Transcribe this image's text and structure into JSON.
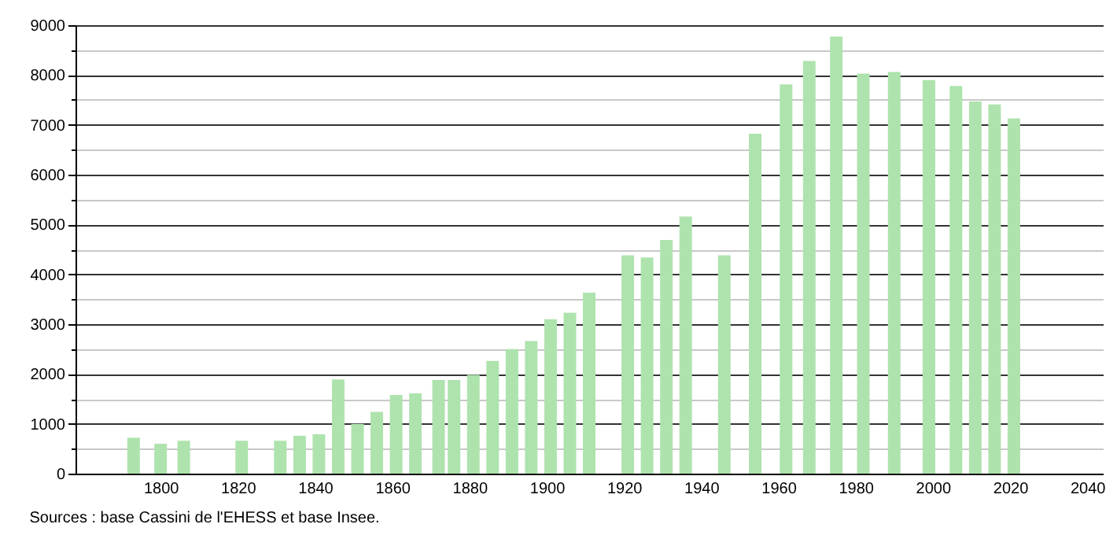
{
  "chart_data": {
    "type": "bar",
    "annotations": [
      "Sources : base Cassini de l'EHESS et base Insee."
    ],
    "x": [
      1793,
      1800,
      1806,
      1821,
      1831,
      1836,
      1841,
      1846,
      1851,
      1856,
      1861,
      1866,
      1872,
      1876,
      1881,
      1886,
      1891,
      1896,
      1901,
      1906,
      1911,
      1921,
      1926,
      1931,
      1936,
      1946,
      1954,
      1962,
      1968,
      1975,
      1982,
      1990,
      1999,
      2006,
      2011,
      2016,
      2021
    ],
    "values": [
      720,
      600,
      660,
      660,
      660,
      760,
      790,
      1890,
      1000,
      1240,
      1580,
      1610,
      1880,
      1880,
      1980,
      2260,
      2500,
      2660,
      3100,
      3230,
      3630,
      4380,
      4340,
      4690,
      5160,
      4380,
      6820,
      7810,
      8280,
      8770,
      8030,
      8060,
      7900,
      7780,
      7470,
      7410,
      7130
    ],
    "color": "#aee3ae",
    "xlim": [
      1780,
      2042
    ],
    "xticks": [
      1800,
      1820,
      1840,
      1860,
      1880,
      1900,
      1920,
      1940,
      1960,
      1980,
      2000,
      2020,
      2040
    ],
    "ylim": [
      0,
      9000
    ],
    "yticks": [
      0,
      {
        "value": 500,
        "label": null
      },
      1000,
      {
        "value": 1500,
        "label": null
      },
      2000,
      {
        "value": 2500,
        "label": null
      },
      3000,
      {
        "value": 3500,
        "label": null
      },
      4000,
      {
        "value": 4500,
        "label": null
      },
      5000,
      {
        "value": 5500,
        "label": null
      },
      6000,
      {
        "value": 6500,
        "label": null
      },
      7000,
      {
        "value": 7500,
        "label": null
      },
      8000,
      {
        "value": 8500,
        "label": null
      },
      9000
    ],
    "grid": "y"
  }
}
